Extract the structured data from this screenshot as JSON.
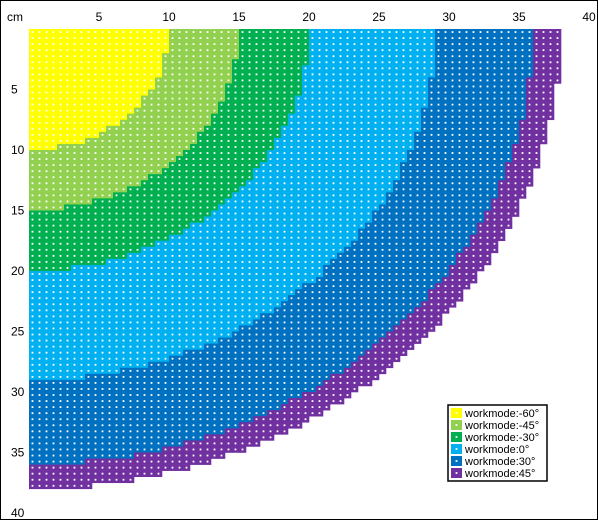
{
  "chart_data": {
    "type": "heatmap",
    "title": "",
    "unit_label": "cm",
    "xlim": [
      0,
      40
    ],
    "ylim": [
      0,
      40
    ],
    "x_ticks": [
      5,
      10,
      15,
      20,
      25,
      30,
      35,
      40
    ],
    "y_ticks": [
      5,
      10,
      15,
      20,
      25,
      30,
      35,
      40
    ],
    "y_axis_inverted": true,
    "cell_size_cm": 0.5,
    "origin": "top-left",
    "grid": false,
    "legend_position": "bottom-right",
    "series": [
      {
        "name": "workmode:-60°",
        "color": "#ffff00",
        "outer_radius_cm": 10
      },
      {
        "name": "workmode:-45°",
        "color": "#92d050",
        "outer_radius_cm": 15
      },
      {
        "name": "workmode:-30°",
        "color": "#00b050",
        "outer_radius_cm": 20
      },
      {
        "name": "workmode:0°",
        "color": "#00b0f0",
        "outer_radius_cm": 29
      },
      {
        "name": "workmode:30°",
        "color": "#0070c0",
        "outer_radius_cm": 36
      },
      {
        "name": "workmode:45°",
        "color": "#7030a0",
        "outer_radius_cm": 38
      }
    ],
    "colors": {
      "cell_dot": "#ffffff",
      "axis_text": "#000000"
    }
  }
}
